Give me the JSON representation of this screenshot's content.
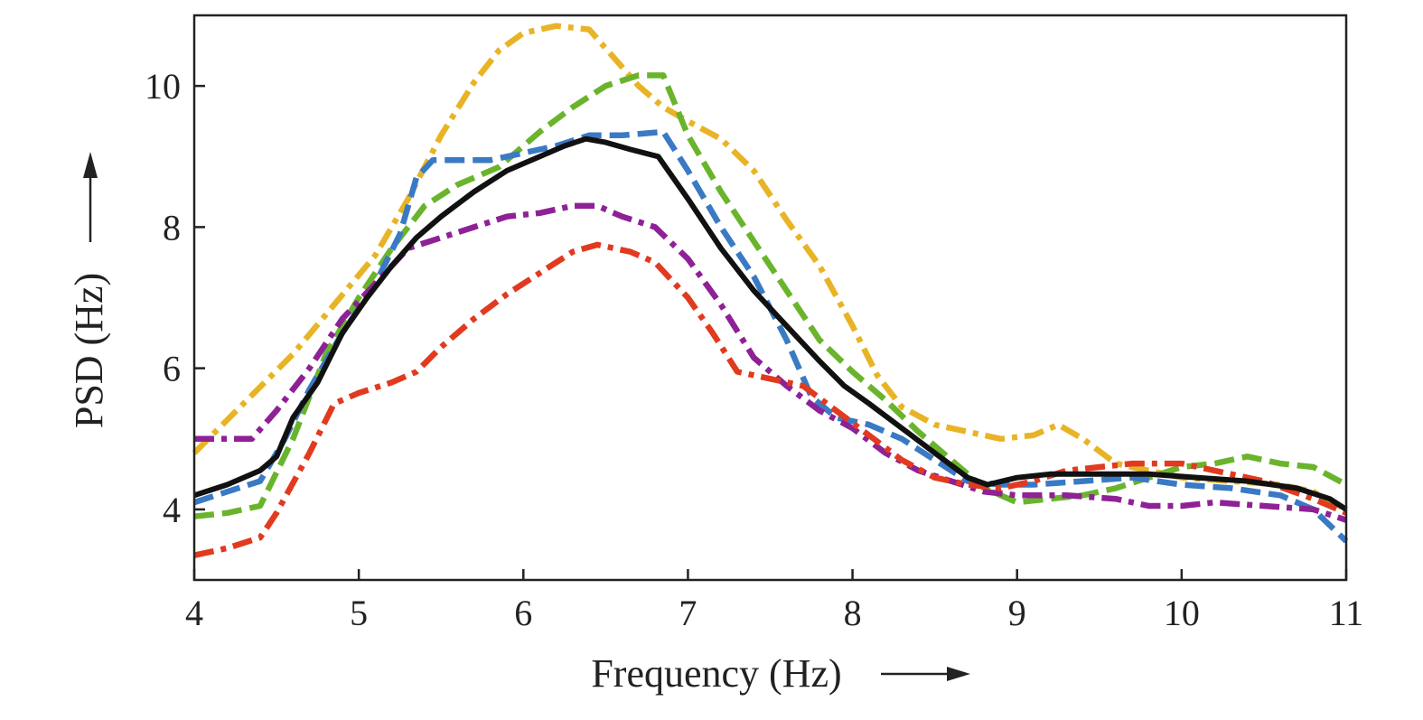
{
  "chart_data": {
    "type": "line",
    "xlabel": "Frequency (Hz)",
    "ylabel": "PSD (Hz)",
    "xlim": [
      4,
      11
    ],
    "ylim": [
      3,
      11
    ],
    "xticks": [
      4,
      5,
      6,
      7,
      8,
      9,
      10,
      11
    ],
    "yticks": [
      4,
      6,
      8,
      10
    ],
    "x_tick_labels": [
      "4",
      "5",
      "6",
      "7",
      "8",
      "9",
      "10",
      "11"
    ],
    "y_tick_labels": [
      "4",
      "6",
      "8",
      "10"
    ],
    "grid": false,
    "legend": "none",
    "series": [
      {
        "color": "#E8B426",
        "style": "dash-dot",
        "points": [
          [
            4.0,
            4.8
          ],
          [
            4.3,
            5.5
          ],
          [
            4.6,
            6.2
          ],
          [
            4.85,
            6.9
          ],
          [
            5.1,
            7.6
          ],
          [
            5.3,
            8.4
          ],
          [
            5.5,
            9.3
          ],
          [
            5.7,
            10.05
          ],
          [
            5.85,
            10.5
          ],
          [
            6.0,
            10.75
          ],
          [
            6.2,
            10.85
          ],
          [
            6.4,
            10.8
          ],
          [
            6.55,
            10.4
          ],
          [
            6.7,
            10.0
          ],
          [
            6.85,
            9.7
          ],
          [
            7.0,
            9.5
          ],
          [
            7.2,
            9.25
          ],
          [
            7.4,
            8.8
          ],
          [
            7.6,
            8.1
          ],
          [
            7.8,
            7.45
          ],
          [
            8.0,
            6.6
          ],
          [
            8.15,
            5.9
          ],
          [
            8.3,
            5.45
          ],
          [
            8.5,
            5.2
          ],
          [
            8.7,
            5.1
          ],
          [
            8.9,
            5.0
          ],
          [
            9.1,
            5.05
          ],
          [
            9.25,
            5.2
          ],
          [
            9.4,
            5.0
          ],
          [
            9.6,
            4.65
          ],
          [
            9.8,
            4.55
          ],
          [
            10.0,
            4.45
          ],
          [
            10.3,
            4.4
          ],
          [
            10.6,
            4.35
          ],
          [
            10.8,
            4.25
          ],
          [
            11.0,
            4.0
          ]
        ]
      },
      {
        "color": "#6AB42D",
        "style": "dash",
        "points": [
          [
            4.0,
            3.9
          ],
          [
            4.2,
            3.95
          ],
          [
            4.4,
            4.05
          ],
          [
            4.6,
            5.0
          ],
          [
            4.8,
            6.2
          ],
          [
            5.0,
            7.0
          ],
          [
            5.2,
            7.7
          ],
          [
            5.4,
            8.3
          ],
          [
            5.6,
            8.6
          ],
          [
            5.85,
            8.85
          ],
          [
            6.1,
            9.35
          ],
          [
            6.3,
            9.7
          ],
          [
            6.5,
            10.0
          ],
          [
            6.7,
            10.15
          ],
          [
            6.85,
            10.15
          ],
          [
            7.0,
            9.3
          ],
          [
            7.2,
            8.5
          ],
          [
            7.4,
            7.8
          ],
          [
            7.6,
            7.1
          ],
          [
            7.8,
            6.4
          ],
          [
            8.0,
            5.95
          ],
          [
            8.2,
            5.55
          ],
          [
            8.4,
            5.1
          ],
          [
            8.6,
            4.7
          ],
          [
            8.8,
            4.3
          ],
          [
            9.0,
            4.1
          ],
          [
            9.2,
            4.15
          ],
          [
            9.4,
            4.2
          ],
          [
            9.6,
            4.3
          ],
          [
            9.8,
            4.45
          ],
          [
            10.0,
            4.6
          ],
          [
            10.2,
            4.65
          ],
          [
            10.4,
            4.75
          ],
          [
            10.6,
            4.65
          ],
          [
            10.8,
            4.6
          ],
          [
            11.0,
            4.35
          ]
        ]
      },
      {
        "color": "#3A7AC4",
        "style": "dash",
        "points": [
          [
            4.0,
            4.1
          ],
          [
            4.2,
            4.25
          ],
          [
            4.4,
            4.4
          ],
          [
            4.55,
            5.0
          ],
          [
            4.7,
            5.7
          ],
          [
            4.9,
            6.5
          ],
          [
            5.1,
            7.2
          ],
          [
            5.25,
            7.9
          ],
          [
            5.35,
            8.7
          ],
          [
            5.45,
            8.95
          ],
          [
            5.6,
            8.95
          ],
          [
            5.8,
            8.95
          ],
          [
            6.0,
            9.05
          ],
          [
            6.2,
            9.15
          ],
          [
            6.4,
            9.3
          ],
          [
            6.6,
            9.3
          ],
          [
            6.85,
            9.35
          ],
          [
            7.0,
            8.8
          ],
          [
            7.2,
            8.0
          ],
          [
            7.4,
            7.3
          ],
          [
            7.6,
            6.4
          ],
          [
            7.75,
            5.6
          ],
          [
            7.9,
            5.3
          ],
          [
            8.1,
            5.2
          ],
          [
            8.3,
            5.0
          ],
          [
            8.5,
            4.7
          ],
          [
            8.7,
            4.4
          ],
          [
            8.9,
            4.35
          ],
          [
            9.1,
            4.35
          ],
          [
            9.4,
            4.4
          ],
          [
            9.7,
            4.45
          ],
          [
            10.0,
            4.35
          ],
          [
            10.3,
            4.3
          ],
          [
            10.6,
            4.2
          ],
          [
            10.8,
            4.0
          ],
          [
            11.0,
            3.55
          ]
        ]
      },
      {
        "color": "#8E2196",
        "style": "dash-dot",
        "points": [
          [
            4.0,
            5.0
          ],
          [
            4.2,
            5.0
          ],
          [
            4.35,
            5.0
          ],
          [
            4.5,
            5.4
          ],
          [
            4.7,
            6.0
          ],
          [
            4.9,
            6.7
          ],
          [
            5.1,
            7.2
          ],
          [
            5.3,
            7.7
          ],
          [
            5.5,
            7.85
          ],
          [
            5.7,
            8.0
          ],
          [
            5.9,
            8.15
          ],
          [
            6.1,
            8.2
          ],
          [
            6.3,
            8.3
          ],
          [
            6.45,
            8.3
          ],
          [
            6.6,
            8.15
          ],
          [
            6.8,
            8.0
          ],
          [
            7.0,
            7.55
          ],
          [
            7.2,
            6.9
          ],
          [
            7.4,
            6.15
          ],
          [
            7.6,
            5.75
          ],
          [
            7.8,
            5.4
          ],
          [
            8.0,
            5.15
          ],
          [
            8.2,
            4.8
          ],
          [
            8.4,
            4.55
          ],
          [
            8.6,
            4.4
          ],
          [
            8.8,
            4.25
          ],
          [
            9.0,
            4.2
          ],
          [
            9.3,
            4.2
          ],
          [
            9.6,
            4.15
          ],
          [
            9.8,
            4.05
          ],
          [
            10.0,
            4.05
          ],
          [
            10.2,
            4.1
          ],
          [
            10.5,
            4.05
          ],
          [
            10.8,
            4.0
          ],
          [
            11.0,
            3.85
          ]
        ]
      },
      {
        "color": "#E13A1F",
        "style": "dash-dot",
        "points": [
          [
            4.0,
            3.35
          ],
          [
            4.2,
            3.45
          ],
          [
            4.4,
            3.6
          ],
          [
            4.5,
            3.95
          ],
          [
            4.7,
            4.8
          ],
          [
            4.85,
            5.5
          ],
          [
            5.0,
            5.65
          ],
          [
            5.2,
            5.8
          ],
          [
            5.35,
            5.95
          ],
          [
            5.5,
            6.3
          ],
          [
            5.7,
            6.7
          ],
          [
            5.9,
            7.05
          ],
          [
            6.1,
            7.35
          ],
          [
            6.3,
            7.65
          ],
          [
            6.45,
            7.75
          ],
          [
            6.65,
            7.65
          ],
          [
            6.8,
            7.5
          ],
          [
            7.0,
            7.0
          ],
          [
            7.15,
            6.5
          ],
          [
            7.3,
            5.95
          ],
          [
            7.5,
            5.85
          ],
          [
            7.7,
            5.75
          ],
          [
            7.9,
            5.4
          ],
          [
            8.1,
            5.05
          ],
          [
            8.3,
            4.7
          ],
          [
            8.5,
            4.45
          ],
          [
            8.7,
            4.35
          ],
          [
            8.9,
            4.3
          ],
          [
            9.1,
            4.4
          ],
          [
            9.3,
            4.55
          ],
          [
            9.5,
            4.6
          ],
          [
            9.7,
            4.65
          ],
          [
            10.0,
            4.65
          ],
          [
            10.2,
            4.55
          ],
          [
            10.5,
            4.4
          ],
          [
            10.8,
            4.15
          ],
          [
            11.0,
            3.95
          ]
        ]
      },
      {
        "color": "#111111",
        "style": "solid",
        "points": [
          [
            4.0,
            4.2
          ],
          [
            4.2,
            4.35
          ],
          [
            4.4,
            4.55
          ],
          [
            4.5,
            4.75
          ],
          [
            4.6,
            5.3
          ],
          [
            4.75,
            5.8
          ],
          [
            4.9,
            6.5
          ],
          [
            5.05,
            7.0
          ],
          [
            5.2,
            7.45
          ],
          [
            5.35,
            7.85
          ],
          [
            5.5,
            8.15
          ],
          [
            5.7,
            8.5
          ],
          [
            5.9,
            8.8
          ],
          [
            6.1,
            9.0
          ],
          [
            6.25,
            9.15
          ],
          [
            6.38,
            9.25
          ],
          [
            6.5,
            9.2
          ],
          [
            6.65,
            9.1
          ],
          [
            6.82,
            9.0
          ],
          [
            7.0,
            8.4
          ],
          [
            7.2,
            7.7
          ],
          [
            7.4,
            7.1
          ],
          [
            7.6,
            6.6
          ],
          [
            7.8,
            6.1
          ],
          [
            7.95,
            5.75
          ],
          [
            8.1,
            5.5
          ],
          [
            8.3,
            5.15
          ],
          [
            8.5,
            4.8
          ],
          [
            8.7,
            4.45
          ],
          [
            8.82,
            4.35
          ],
          [
            9.0,
            4.45
          ],
          [
            9.2,
            4.5
          ],
          [
            9.5,
            4.5
          ],
          [
            9.8,
            4.5
          ],
          [
            10.1,
            4.45
          ],
          [
            10.4,
            4.4
          ],
          [
            10.7,
            4.3
          ],
          [
            10.9,
            4.15
          ],
          [
            11.0,
            4.0
          ]
        ]
      }
    ]
  }
}
